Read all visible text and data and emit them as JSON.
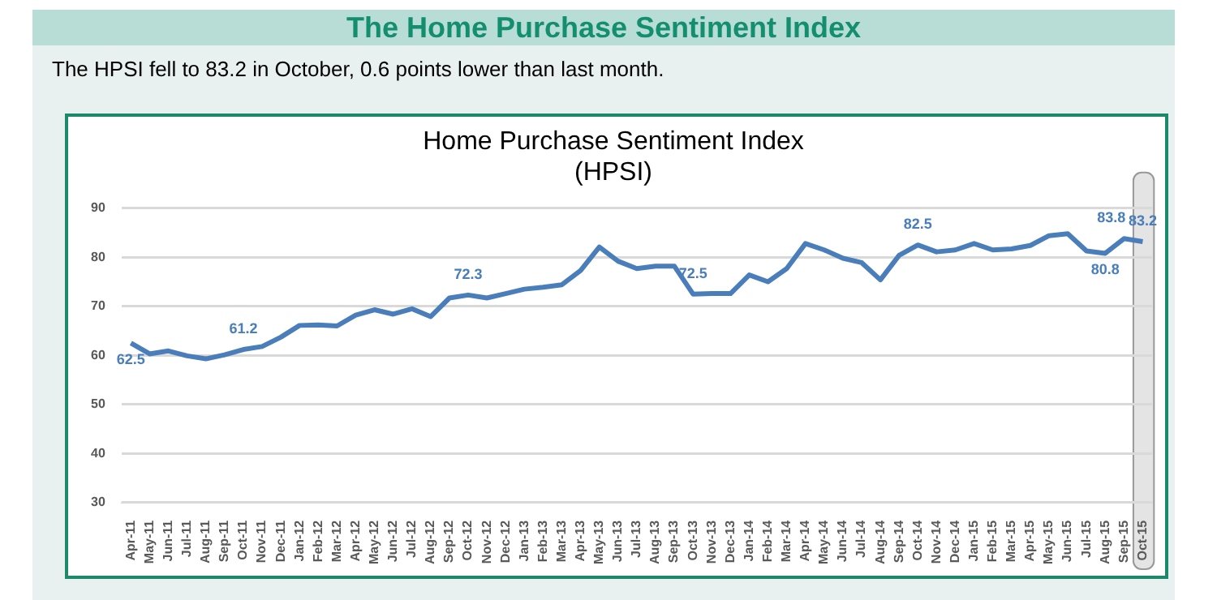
{
  "chart_data": {
    "type": "line",
    "title": "Home Purchase Sentiment Index\n(HPSI)",
    "annotations": [
      "The Home Purchase Sentiment Index",
      "The HPSI fell to 83.2 in October, 0.6 points lower than last month."
    ],
    "categories": [
      "Apr-11",
      "May-11",
      "Jun-11",
      "Jul-11",
      "Aug-11",
      "Sep-11",
      "Oct-11",
      "Nov-11",
      "Dec-11",
      "Jan-12",
      "Feb-12",
      "Mar-12",
      "Apr-12",
      "May-12",
      "Jun-12",
      "Jul-12",
      "Aug-12",
      "Sep-12",
      "Oct-12",
      "Nov-12",
      "Dec-12",
      "Jan-13",
      "Feb-13",
      "Mar-13",
      "Apr-13",
      "May-13",
      "Jun-13",
      "Jul-13",
      "Aug-13",
      "Sep-13",
      "Oct-13",
      "Nov-13",
      "Dec-13",
      "Jan-14",
      "Feb-14",
      "Mar-14",
      "Apr-14",
      "May-14",
      "Jun-14",
      "Jul-14",
      "Aug-14",
      "Sep-14",
      "Oct-14",
      "Nov-14",
      "Dec-14",
      "Jan-15",
      "Feb-15",
      "Mar-15",
      "Apr-15",
      "May-15",
      "Jun-15",
      "Jul-15",
      "Aug-15",
      "Sep-15",
      "Oct-15"
    ],
    "series": [
      {
        "color": "#4a7ebb",
        "values": [
          62.5,
          60.3,
          60.9,
          59.9,
          59.3,
          60.1,
          61.2,
          61.8,
          63.7,
          66.1,
          66.2,
          66.0,
          68.2,
          69.3,
          68.4,
          69.5,
          67.9,
          71.7,
          72.3,
          71.7,
          72.6,
          73.5,
          73.9,
          74.4,
          77.3,
          82.1,
          79.2,
          77.7,
          78.2,
          78.2,
          72.5,
          72.6,
          72.6,
          76.4,
          75.0,
          77.7,
          82.8,
          81.5,
          79.8,
          78.9,
          75.4,
          80.4,
          82.5,
          81.1,
          81.5,
          82.8,
          81.5,
          81.7,
          82.4,
          84.4,
          84.8,
          81.3,
          80.8,
          83.8,
          83.2
        ],
        "value_labels": [
          "62.5",
          null,
          null,
          null,
          null,
          null,
          "61.2",
          null,
          null,
          null,
          null,
          null,
          null,
          null,
          null,
          null,
          null,
          null,
          "72.3",
          null,
          null,
          null,
          null,
          null,
          null,
          null,
          null,
          null,
          null,
          null,
          "72.5",
          null,
          null,
          null,
          null,
          null,
          null,
          null,
          null,
          null,
          null,
          null,
          "82.5",
          null,
          null,
          null,
          null,
          null,
          null,
          null,
          null,
          null,
          "80.8",
          "83.8",
          "83.2"
        ]
      }
    ],
    "ylim": [
      30,
      90
    ],
    "yticks": [
      30,
      40,
      50,
      60,
      70,
      80,
      90
    ],
    "grid": "y",
    "legend": false,
    "marker": "none",
    "line_style": "solid",
    "bands": [
      {
        "axis": "x",
        "from": "Oct-15",
        "to": "Oct-15",
        "color": "#e4e4e4"
      }
    ]
  }
}
